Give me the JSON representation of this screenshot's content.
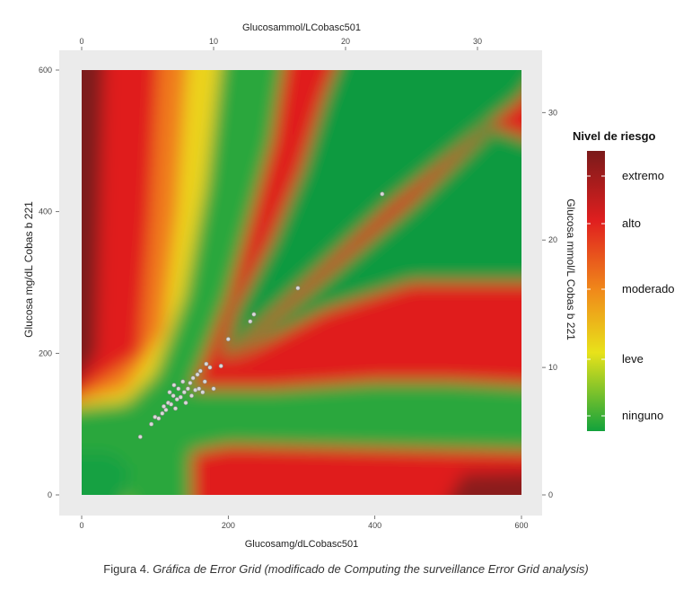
{
  "chart_data": {
    "type": "heatmap",
    "title": "",
    "xlabel_bottom": "Glucosamg/dLCobasc501",
    "xlabel_top": "Glucosammol/LCobasc501",
    "ylabel_left": "Glucosa mg/dL Cobas b 221",
    "ylabel_right": "Glucosa mmol/L Cobas b 221",
    "xlim": [
      0,
      600
    ],
    "ylim": [
      0,
      600
    ],
    "x_ticks_bottom": [
      "0",
      "200",
      "400",
      "600"
    ],
    "y_ticks_left": [
      "0",
      "200",
      "400",
      "600"
    ],
    "x_ticks_top": [
      "0",
      "10",
      "20",
      "30"
    ],
    "y_ticks_right": [
      "0",
      "10",
      "20",
      "30"
    ],
    "legend": {
      "title": "Nivel de riesgo",
      "labels": [
        "extremo",
        "alto",
        "moderado",
        "leve",
        "ninguno"
      ],
      "colors": [
        "#8c1c1c",
        "#e01f1f",
        "#f39a1e",
        "#e3e01a",
        "#1f9e3f"
      ]
    },
    "points": [
      [
        80,
        82
      ],
      [
        95,
        100
      ],
      [
        100,
        110
      ],
      [
        105,
        108
      ],
      [
        110,
        115
      ],
      [
        112,
        125
      ],
      [
        115,
        120
      ],
      [
        118,
        130
      ],
      [
        120,
        145
      ],
      [
        122,
        128
      ],
      [
        125,
        140
      ],
      [
        126,
        155
      ],
      [
        128,
        122
      ],
      [
        130,
        135
      ],
      [
        132,
        150
      ],
      [
        135,
        138
      ],
      [
        138,
        160
      ],
      [
        140,
        145
      ],
      [
        142,
        130
      ],
      [
        145,
        150
      ],
      [
        148,
        158
      ],
      [
        150,
        140
      ],
      [
        152,
        165
      ],
      [
        155,
        148
      ],
      [
        158,
        170
      ],
      [
        160,
        150
      ],
      [
        162,
        175
      ],
      [
        165,
        145
      ],
      [
        168,
        160
      ],
      [
        170,
        185
      ],
      [
        175,
        180
      ],
      [
        180,
        150
      ],
      [
        190,
        182
      ],
      [
        200,
        220
      ],
      [
        230,
        245
      ],
      [
        235,
        255
      ],
      [
        295,
        292
      ],
      [
        410,
        425
      ]
    ]
  },
  "caption": {
    "prefix": "Figura 4. ",
    "italic": "Gráfica de Error Grid (modificado de Computing the surveillance Error Grid analysis)"
  }
}
